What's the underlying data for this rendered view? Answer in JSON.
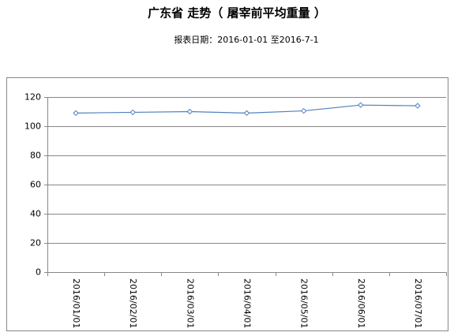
{
  "chart_data": {
    "type": "line",
    "title": "广东省 走势（ 屠宰前平均重量 ）",
    "subtitle": "报表日期：2016-01-01 至2016-7-1",
    "categories": [
      "2016/01/01",
      "2016/02/01",
      "2016/03/01",
      "2016/04/01",
      "2016/05/01",
      "2016/06/01",
      "2016/07/01"
    ],
    "series": [
      {
        "color": "#4f81bd",
        "values": [
          109,
          109.5,
          110,
          109,
          110.5,
          114.5,
          114
        ]
      }
    ],
    "ylim": [
      0,
      120
    ],
    "yticks": [
      0,
      20,
      40,
      60,
      80,
      100,
      120
    ],
    "grid": true
  }
}
